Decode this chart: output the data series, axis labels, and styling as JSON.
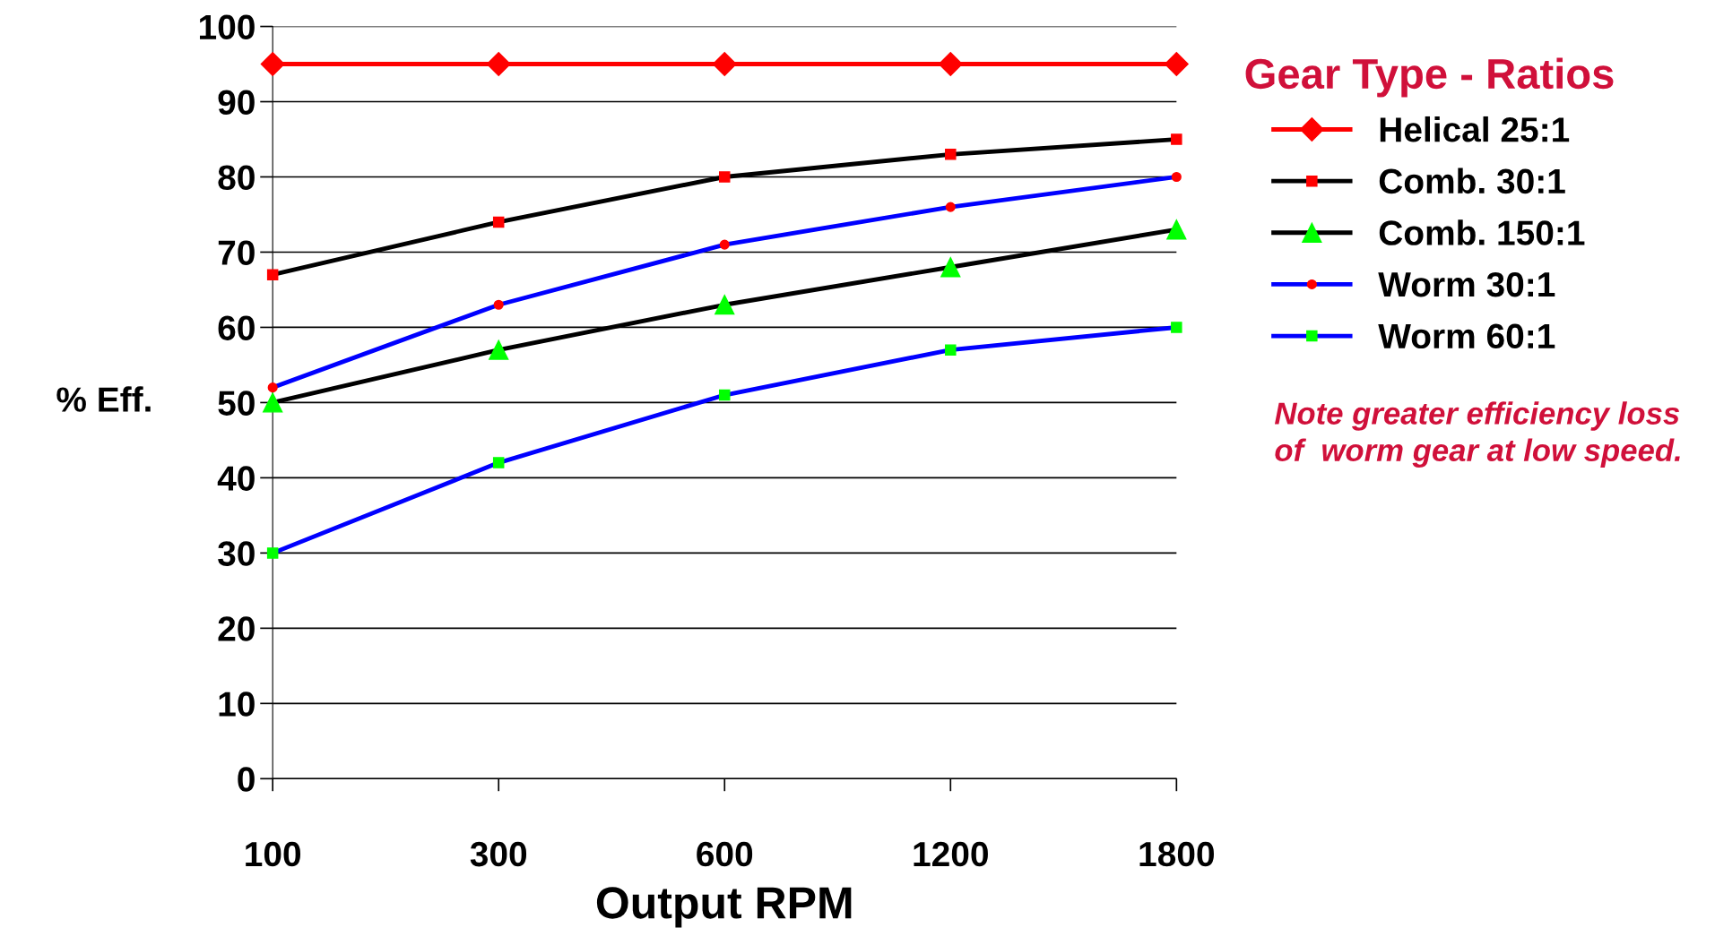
{
  "chart_data": {
    "type": "line",
    "xlabel": "Output RPM",
    "ylabel": "% Eff.",
    "legend_title": "Gear Type - Ratios",
    "categories": [
      "100",
      "300",
      "600",
      "1200",
      "1800"
    ],
    "series": [
      {
        "name": "Helical 25:1",
        "color": "#ff0000",
        "marker": "diamond",
        "colors": [
          "#ff0000",
          "#ff0000",
          "#ff0000",
          "#ff0000",
          "#ff0000"
        ],
        "values": [
          95,
          95,
          95,
          95,
          95
        ]
      },
      {
        "name": "Comb. 30:1",
        "color": "#000000",
        "marker": "square",
        "colors": [
          "#ff0000",
          "#ff0000",
          "#ff0000",
          "#ff0000",
          "#ff0000"
        ],
        "values": [
          67,
          74,
          80,
          83,
          85
        ]
      },
      {
        "name": "Comb. 150:1",
        "color": "#000000",
        "marker": "triangle",
        "colors": [
          "#00ff00",
          "#00ff00",
          "#00ff00",
          "#00ff00",
          "#00ff00"
        ],
        "values": [
          50,
          57,
          63,
          68,
          73
        ]
      },
      {
        "name": "Worm 30:1",
        "color": "#0000ff",
        "marker": "circle",
        "colors": [
          "#ff0000",
          "#ff0000",
          "#ff0000",
          "#ff0000",
          "#ff0000"
        ],
        "values": [
          52,
          63,
          71,
          76,
          80
        ]
      },
      {
        "name": "Worm 60:1",
        "color": "#0000ff",
        "marker": "square",
        "colors": [
          "#00ff00",
          "#00ff00",
          "#00ff00",
          "#00ff00",
          "#00ff00"
        ],
        "values": [
          30,
          42,
          51,
          57,
          60
        ]
      }
    ],
    "ylim": [
      0,
      100
    ],
    "yticks": [
      0,
      10,
      20,
      30,
      40,
      50,
      60,
      70,
      80,
      90,
      100
    ],
    "grid": "y",
    "legend": "right",
    "annotations": [
      "Note greater efficiency loss of  worm gear at low speed."
    ]
  }
}
